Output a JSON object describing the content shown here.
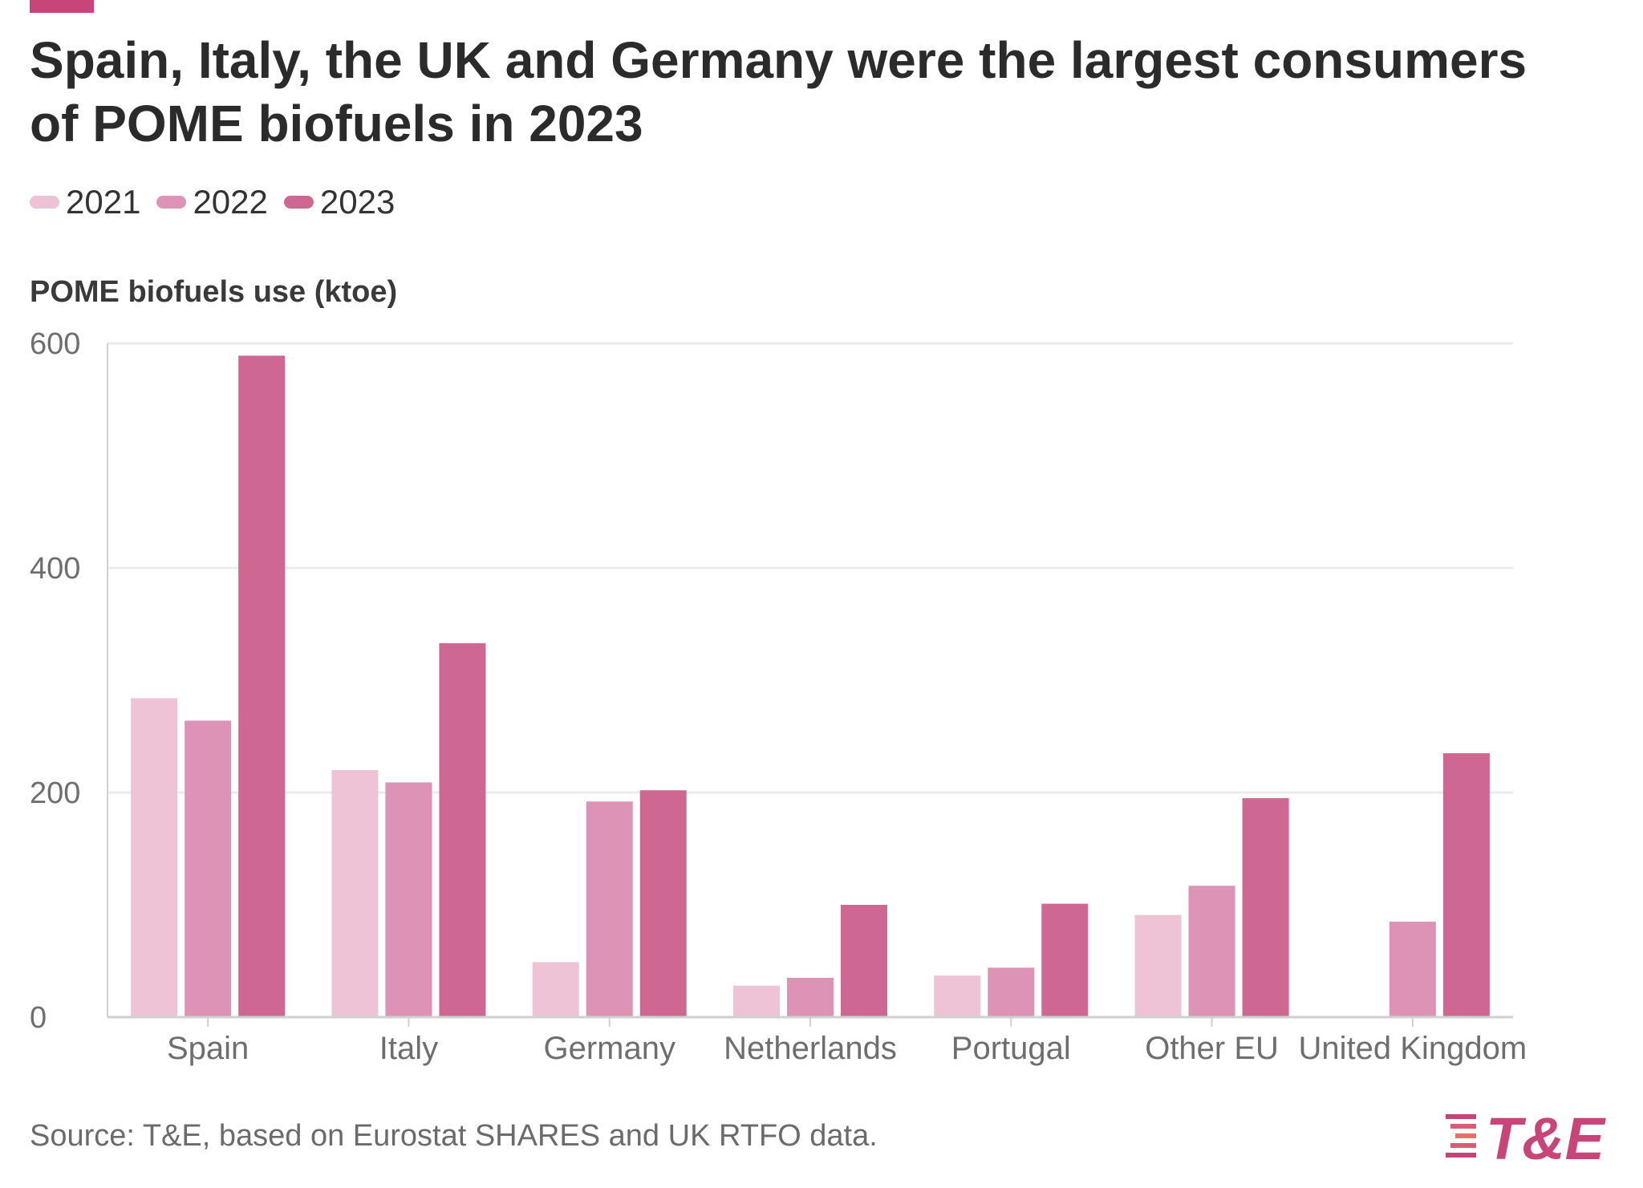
{
  "title": "Spain, Italy, the UK and Germany were the largest consumers of POME biofuels in 2023",
  "source": "Source: T&E, based on Eurostat SHARES and UK RTFO data.",
  "logo_text": "T&E",
  "colors": {
    "accent": "#c8457a",
    "y2021": "#eec3d6",
    "y2022": "#dd93b5",
    "y2023": "#cf6793",
    "logo_orange": "#ef8a5a"
  },
  "chart_data": {
    "type": "bar",
    "ylabel": "POME biofuels use (ktoe)",
    "ylim": [
      0,
      600
    ],
    "yticks": [
      "0",
      "200",
      "400",
      "600"
    ],
    "grid": true,
    "legend_position": "top-left",
    "categories": [
      "Spain",
      "Italy",
      "Germany",
      "Netherlands",
      "Portugal",
      "Other EU",
      "United Kingdom"
    ],
    "series": [
      {
        "name": "2021",
        "color": "#eec3d6",
        "values": [
          284,
          220,
          49,
          28,
          37,
          91,
          0
        ]
      },
      {
        "name": "2022",
        "color": "#dd93b5",
        "values": [
          264,
          209,
          192,
          35,
          44,
          117,
          85
        ]
      },
      {
        "name": "2023",
        "color": "#cf6793",
        "values": [
          589,
          333,
          202,
          100,
          101,
          195,
          235
        ]
      }
    ]
  }
}
